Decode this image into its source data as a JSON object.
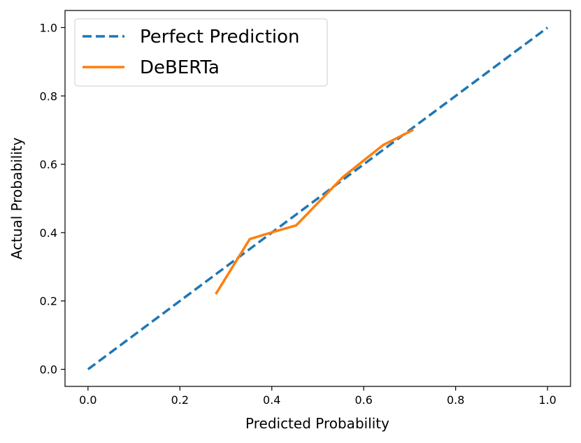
{
  "chart_data": {
    "type": "line",
    "title": "",
    "xlabel": "Predicted Probability",
    "ylabel": "Actual Probability",
    "xlim": [
      -0.05,
      1.05
    ],
    "ylim": [
      -0.05,
      1.05
    ],
    "xticks": [
      0.0,
      0.2,
      0.4,
      0.6,
      0.8,
      1.0
    ],
    "yticks": [
      0.0,
      0.2,
      0.4,
      0.6,
      0.8,
      1.0
    ],
    "xtick_labels": [
      "0.0",
      "0.2",
      "0.4",
      "0.6",
      "0.8",
      "1.0"
    ],
    "ytick_labels": [
      "0.0",
      "0.2",
      "0.4",
      "0.6",
      "0.8",
      "1.0"
    ],
    "grid": false,
    "legend_position": "top-left",
    "series": [
      {
        "name": "Perfect Prediction",
        "style": "dashed",
        "color": "#1f77b4",
        "x": [
          0.0,
          1.0
        ],
        "y": [
          0.0,
          1.0
        ]
      },
      {
        "name": "DeBERTa",
        "style": "solid",
        "color": "#ff7f0e",
        "x": [
          0.278,
          0.352,
          0.398,
          0.453,
          0.555,
          0.642,
          0.708
        ],
        "y": [
          0.22,
          0.381,
          0.4,
          0.421,
          0.563,
          0.656,
          0.701
        ]
      }
    ]
  }
}
